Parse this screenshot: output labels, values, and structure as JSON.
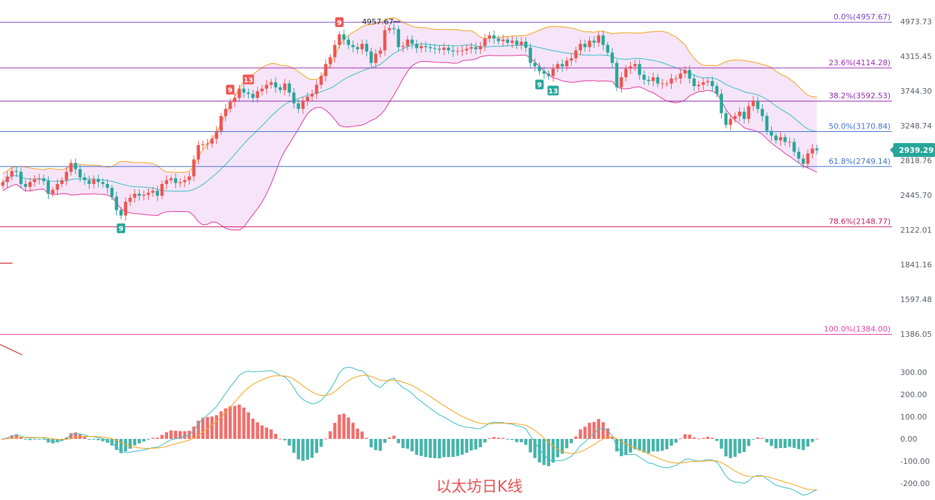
{
  "caption": "以太坊日K线",
  "colors": {
    "up": "#ef5350",
    "down": "#26a69a",
    "band_fill": "#f3dcf6",
    "band_upper": "#f5a623",
    "band_lower": "#e040a0",
    "band_mid": "#42bfc8",
    "macd_dif": "#42bfc8",
    "macd_dea": "#f5a623"
  },
  "chart_data": [
    {
      "type": "candlestick",
      "title": "",
      "y_axis_ticks": [
        4973.73,
        4315.45,
        3744.3,
        3248.74,
        2818.76,
        2445.7,
        2122.01,
        1841.16,
        1597.48,
        1386.05
      ],
      "ylim": [
        1200,
        5500
      ],
      "y_scale": "log",
      "current_price": 2939.29,
      "peak_label": "4957.67",
      "fib_levels": [
        {
          "label": "0.0%(4957.67)",
          "price": 4957.67,
          "color": "#7b3fc4"
        },
        {
          "label": "23.6%(4114.28)",
          "price": 4114.28,
          "color": "#9c27b0"
        },
        {
          "label": "38.2%(3592.53)",
          "price": 3592.53,
          "color": "#8e24aa"
        },
        {
          "label": "50.0%(3170.84)",
          "price": 3170.84,
          "color": "#3f6fd1"
        },
        {
          "label": "61.8%(2749.14)",
          "price": 2749.14,
          "color": "#3f6fd1"
        },
        {
          "label": "78.6%(2148.77)",
          "price": 2148.77,
          "color": "#c2185b"
        },
        {
          "label": "100.0%(1384.00)",
          "price": 1384.0,
          "color": "#e040a0"
        }
      ],
      "closes": [
        2580,
        2640,
        2700,
        2690,
        2560,
        2530,
        2580,
        2610,
        2620,
        2590,
        2460,
        2500,
        2560,
        2600,
        2690,
        2790,
        2720,
        2630,
        2600,
        2560,
        2610,
        2580,
        2560,
        2520,
        2430,
        2300,
        2250,
        2380,
        2420,
        2460,
        2440,
        2450,
        2470,
        2490,
        2440,
        2560,
        2600,
        2620,
        2570,
        2580,
        2600,
        2640,
        2830,
        3000,
        3010,
        3020,
        3080,
        3180,
        3380,
        3480,
        3580,
        3640,
        3780,
        3720,
        3700,
        3640,
        3740,
        3780,
        3840,
        3880,
        3800,
        3760,
        3860,
        3720,
        3560,
        3480,
        3590,
        3660,
        3700,
        3840,
        3980,
        4180,
        4300,
        4520,
        4720,
        4620,
        4520,
        4480,
        4440,
        4540,
        4400,
        4200,
        4360,
        4420,
        4800,
        4840,
        4820,
        4480,
        4500,
        4620,
        4540,
        4460,
        4500,
        4480,
        4460,
        4450,
        4430,
        4470,
        4420,
        4400,
        4410,
        4420,
        4450,
        4480,
        4440,
        4500,
        4640,
        4700,
        4640,
        4590,
        4620,
        4560,
        4600,
        4520,
        4580,
        4470,
        4200,
        4140,
        4060,
        4020,
        3980,
        4100,
        4180,
        4140,
        4240,
        4280,
        4420,
        4540,
        4480,
        4600,
        4560,
        4700,
        4520,
        4380,
        4200,
        3800,
        3960,
        4100,
        4140,
        4180,
        4000,
        3920,
        3900,
        3960,
        3860,
        3860,
        3860,
        3940,
        3940,
        4020,
        4080,
        3940,
        3820,
        3840,
        3880,
        3900,
        3820,
        3700,
        3420,
        3260,
        3340,
        3380,
        3440,
        3340,
        3520,
        3600,
        3480,
        3380,
        3180,
        3120,
        3060,
        3100,
        3040,
        3040,
        2920,
        2840,
        2780,
        2900,
        2960,
        2939.29
      ]
    },
    {
      "type": "bar",
      "title": "",
      "y_axis_ticks": [
        300.0,
        200.0,
        100.0,
        0.0,
        -100.0,
        -200.0
      ],
      "ylim": [
        -260,
        340
      ],
      "series": [
        {
          "name": "",
          "values": []
        }
      ]
    }
  ]
}
